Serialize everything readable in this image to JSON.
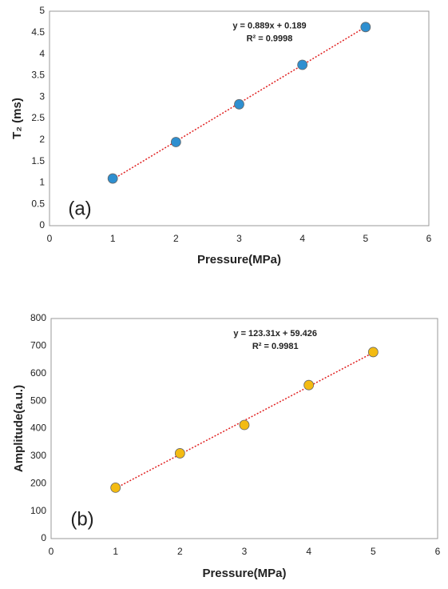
{
  "chart_data": [
    {
      "type": "scatter",
      "panel_label": "(a)",
      "x_label": "Pressure(MPa)",
      "y_label": "T₂ (ms)",
      "x": [
        1,
        2,
        3,
        4,
        5
      ],
      "values": [
        1.1,
        1.95,
        2.83,
        3.75,
        4.63
      ],
      "color": "#2e8fd0",
      "xlim": [
        0,
        6
      ],
      "xticks": [
        0,
        1,
        2,
        3,
        4,
        5,
        6
      ],
      "ylim": [
        0,
        5
      ],
      "yticks": [
        0,
        0.5,
        1,
        1.5,
        2,
        2.5,
        3,
        3.5,
        4,
        4.5,
        5
      ],
      "trendline": {
        "slope": 0.889,
        "intercept": 0.189,
        "color": "#e02020",
        "equation": "y = 0.889x + 0.189",
        "r2": "R² = 0.9998"
      },
      "grid": false
    },
    {
      "type": "scatter",
      "panel_label": "(b)",
      "x_label": "Pressure(MPa)",
      "y_label": "Amplitude(a.u.)",
      "x": [
        1,
        2,
        3,
        4,
        5
      ],
      "values": [
        185,
        310,
        413,
        558,
        678
      ],
      "color": "#f3bb12",
      "xlim": [
        0,
        6
      ],
      "xticks": [
        0,
        1,
        2,
        3,
        4,
        5,
        6
      ],
      "ylim": [
        0,
        800
      ],
      "yticks": [
        0,
        100,
        200,
        300,
        400,
        500,
        600,
        700,
        800
      ],
      "trendline": {
        "slope": 123.31,
        "intercept": 59.426,
        "color": "#e02020",
        "equation": "y = 123.31x + 59.426",
        "r2": "R² = 0.9981"
      },
      "grid": false
    }
  ]
}
